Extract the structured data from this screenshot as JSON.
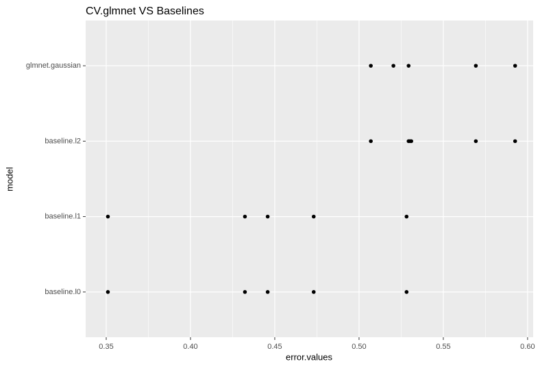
{
  "chart_data": {
    "type": "scatter",
    "title": "CV.glmnet VS Baselines",
    "x_label": "error.values",
    "y_label": "model",
    "categories": [
      "baseline.l0",
      "baseline.l1",
      "baseline.l2",
      "glmnet.gaussian"
    ],
    "values": [
      [
        0.351,
        0.4323,
        0.4458,
        0.4731,
        0.5282
      ],
      [
        0.351,
        0.4323,
        0.4458,
        0.4731,
        0.5282
      ],
      [
        0.507,
        0.5294,
        0.5302,
        0.531,
        0.5693,
        0.5926
      ],
      [
        0.507,
        0.5204,
        0.5294,
        0.5693,
        0.5926
      ]
    ],
    "color": "#000000",
    "xlim": [
      0.3378,
      0.6033
    ],
    "xticks": [
      0.35,
      {
        "value": 0.4,
        "label": "0.40"
      },
      0.45,
      {
        "value": 0.5,
        "label": "0.50"
      },
      0.55,
      {
        "value": 0.6,
        "label": "0.60"
      }
    ],
    "grid": true
  }
}
